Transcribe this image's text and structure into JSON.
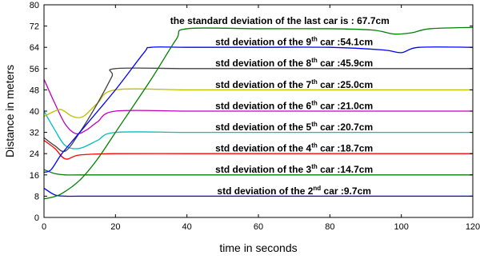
{
  "chart_data": {
    "type": "line",
    "title": "",
    "xlabel": "time in seconds",
    "ylabel": "Distance in meters",
    "xlim": [
      0,
      120
    ],
    "ylim": [
      0,
      80
    ],
    "xticks": [
      0,
      20,
      40,
      60,
      80,
      100,
      120
    ],
    "yticks": [
      0,
      8,
      16,
      24,
      32,
      40,
      48,
      56,
      64,
      72,
      80
    ],
    "grid": false,
    "colors": {
      "car2": "#0000ff",
      "car3": "#008000",
      "car4": "#ff0000",
      "car5": "#00bfbf",
      "car6": "#bf00bf",
      "car7": "#bfbf00",
      "car8": "#404040",
      "car9": "#0000ff",
      "car10": "#008000"
    },
    "series": [
      {
        "color_key": "car2",
        "x": [
          0,
          3,
          6,
          10,
          20,
          40,
          60,
          80,
          100,
          120
        ],
        "y": [
          11,
          8.5,
          8,
          8,
          8,
          8,
          8,
          8,
          8,
          8
        ]
      },
      {
        "color_key": "car3",
        "x": [
          0,
          3,
          6,
          10,
          20,
          40,
          60,
          80,
          100,
          120
        ],
        "y": [
          18,
          16.5,
          16,
          16,
          16,
          16,
          16,
          16,
          16,
          16
        ]
      },
      {
        "color_key": "car4",
        "x": [
          0,
          3,
          6,
          10,
          20,
          40,
          60,
          80,
          100,
          120
        ],
        "y": [
          29,
          26,
          22,
          23.5,
          24,
          24,
          24,
          24,
          24,
          24
        ]
      },
      {
        "color_key": "car5",
        "x": [
          0,
          3,
          6,
          10,
          15,
          20,
          40,
          60,
          80,
          100,
          120
        ],
        "y": [
          40,
          33,
          27,
          26,
          29,
          32,
          32,
          32,
          32,
          32,
          32
        ]
      },
      {
        "color_key": "car6",
        "x": [
          0,
          3,
          6,
          9,
          12,
          15,
          20,
          40,
          60,
          80,
          100,
          120
        ],
        "y": [
          52,
          43,
          35,
          31.5,
          33,
          36,
          40,
          40,
          40,
          40,
          40,
          40
        ]
      },
      {
        "color_key": "car7",
        "x": [
          0,
          3,
          5,
          8,
          11,
          15,
          20,
          40,
          60,
          80,
          100,
          120
        ],
        "y": [
          38,
          40,
          40.5,
          38,
          38,
          43,
          48,
          48,
          48,
          48,
          48,
          48
        ]
      },
      {
        "color_key": "car8",
        "x": [
          0,
          3,
          6,
          10,
          15,
          19,
          20,
          40,
          60,
          80,
          100,
          120
        ],
        "y": [
          30,
          27,
          25,
          32,
          43,
          53,
          56,
          56,
          56,
          56,
          56,
          56
        ]
      },
      {
        "color_key": "car9",
        "x": [
          0,
          2,
          5,
          10,
          20,
          28,
          30,
          40,
          60,
          80,
          95,
          100,
          105,
          120
        ],
        "y": [
          17,
          18,
          24,
          32,
          48,
          62,
          64,
          64,
          64,
          64,
          63,
          62,
          64,
          64
        ]
      },
      {
        "color_key": "car10",
        "x": [
          0,
          2,
          5,
          10,
          15,
          20,
          30,
          37,
          40,
          60,
          80,
          92,
          98,
          103,
          108,
          120
        ],
        "y": [
          7,
          7.5,
          9,
          14,
          22,
          32,
          52,
          67,
          71,
          71,
          71,
          70.5,
          69,
          69.5,
          71,
          71.5
        ]
      }
    ],
    "annotations": [
      {
        "pre": "the standard deviation of the last car is : 67.7cm",
        "sup": "",
        "post": "",
        "y": 74
      },
      {
        "pre": "std deviation of the 9",
        "sup": "th",
        "post": " car :54.1cm",
        "y": 66
      },
      {
        "pre": "std deviation of the 8",
        "sup": "th",
        "post": " car :45.9cm",
        "y": 58
      },
      {
        "pre": "std deviation of the 7",
        "sup": "th",
        "post": " car :25.0cm",
        "y": 50
      },
      {
        "pre": "std deviation of the 6",
        "sup": "th",
        "post": " car :21.0cm",
        "y": 42
      },
      {
        "pre": "std deviation of the 5",
        "sup": "th",
        "post": " car :20.7cm",
        "y": 34
      },
      {
        "pre": "std deviation of the 4",
        "sup": "th",
        "post": " car :18.7cm",
        "y": 26
      },
      {
        "pre": "std deviation of the 3",
        "sup": "th",
        "post": " car :14.7cm",
        "y": 18
      },
      {
        "pre": "std deviation of the 2",
        "sup": "nd",
        "post": " car :9.7cm",
        "y": 10
      }
    ]
  }
}
